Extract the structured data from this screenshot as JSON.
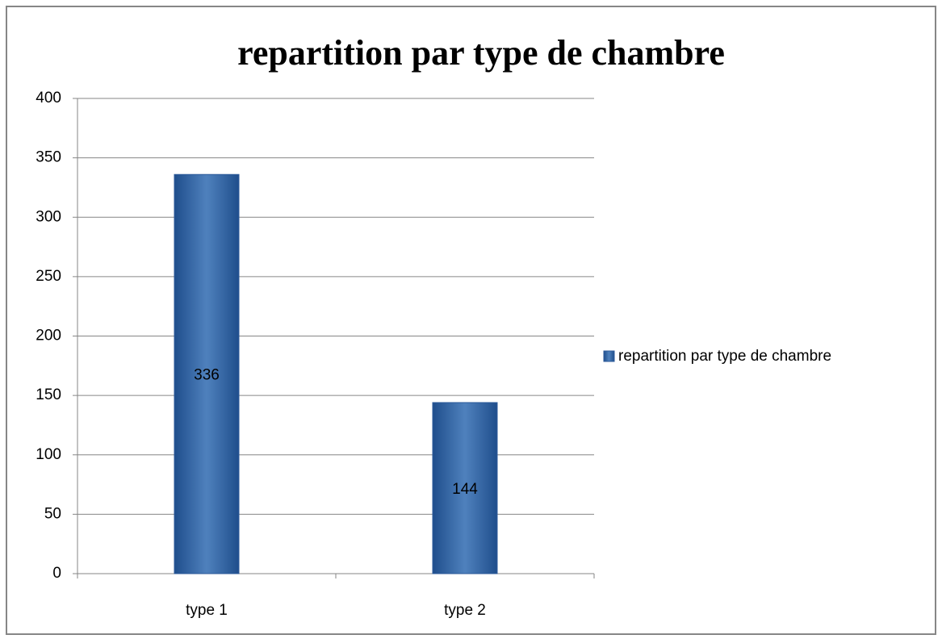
{
  "chart_data": {
    "type": "bar",
    "title": "repartition par type de chambre",
    "categories": [
      "type 1",
      "type 2"
    ],
    "series": [
      {
        "name": "repartition par type de chambre",
        "color": "#4f81bd",
        "values": [
          336,
          144
        ]
      }
    ],
    "ylim": [
      0,
      400
    ],
    "yticks": [
      0,
      50,
      100,
      150,
      200,
      250,
      300,
      350,
      400
    ],
    "grid": true,
    "legend": "right",
    "data_labels": true
  }
}
